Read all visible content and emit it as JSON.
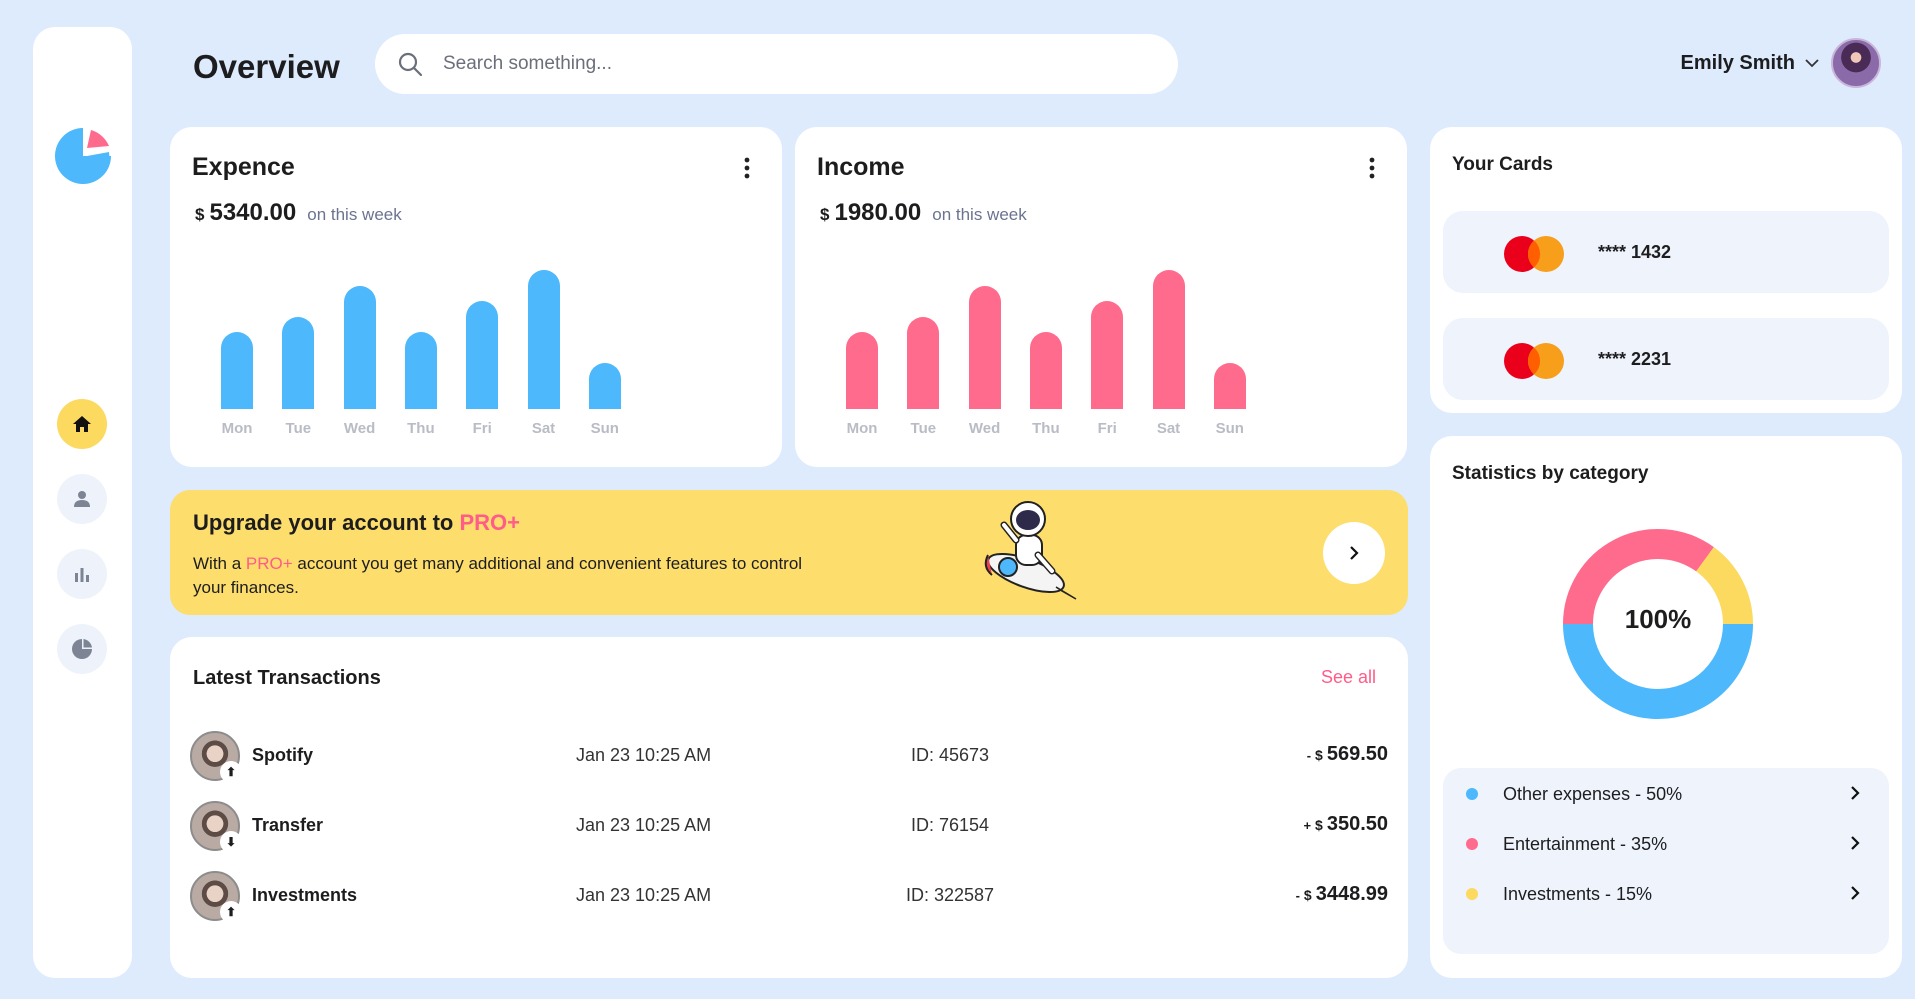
{
  "header": {
    "title": "Overview",
    "search_placeholder": "Search something...",
    "user_name": "Emily Smith"
  },
  "sidebar": {
    "items": [
      {
        "icon": "home-icon",
        "active": true
      },
      {
        "icon": "user-icon",
        "active": false
      },
      {
        "icon": "bar-chart-icon",
        "active": false
      },
      {
        "icon": "pie-chart-icon",
        "active": false
      }
    ]
  },
  "expense": {
    "title": "Expence",
    "currency": "$",
    "amount": "5340.00",
    "period": "on this week",
    "color": "#4db8fb"
  },
  "income": {
    "title": "Income",
    "currency": "$",
    "amount": "1980.00",
    "period": "on this week",
    "color": "#ff6b8d"
  },
  "chart_data": [
    {
      "type": "bar",
      "title": "Expence",
      "categories": [
        "Mon",
        "Tue",
        "Wed",
        "Thu",
        "Fri",
        "Sat",
        "Sun"
      ],
      "values": [
        55,
        66,
        88,
        55,
        77,
        99,
        33
      ],
      "ylim": [
        0,
        100
      ]
    },
    {
      "type": "bar",
      "title": "Income",
      "categories": [
        "Mon",
        "Tue",
        "Wed",
        "Thu",
        "Fri",
        "Sat",
        "Sun"
      ],
      "values": [
        55,
        66,
        88,
        55,
        77,
        99,
        33
      ],
      "ylim": [
        0,
        100
      ]
    },
    {
      "type": "pie",
      "title": "Statistics by category",
      "center_label": "100%",
      "categories": [
        "Other expenses",
        "Entertainment",
        "Investments"
      ],
      "values": [
        50,
        35,
        15
      ],
      "colors": [
        "#4db8fb",
        "#ff6b8d",
        "#fcd95f"
      ]
    }
  ],
  "promo": {
    "title_prefix": "Upgrade your account to ",
    "title_highlight": "PRO+",
    "text_prefix": "With a ",
    "text_highlight": "PRO+",
    "text_suffix": " account you get many additional and convenient features to control your finances."
  },
  "transactions": {
    "title": "Latest Transactions",
    "see_all": "See all",
    "rows": [
      {
        "name": "Spotify",
        "date": "Jan 23 10:25 AM",
        "id": "ID: 45673",
        "sign": "-",
        "currency": "$",
        "amount": "569.50",
        "direction": "up"
      },
      {
        "name": "Transfer",
        "date": "Jan 23 10:25 AM",
        "id": "ID: 76154",
        "sign": "+",
        "currency": "$",
        "amount": "350.50",
        "direction": "down"
      },
      {
        "name": "Investments",
        "date": "Jan 23 10:25 AM",
        "id": "ID: 322587",
        "sign": "-",
        "currency": "$",
        "amount": "3448.99",
        "direction": "up"
      }
    ]
  },
  "cards": {
    "title": "Your Cards",
    "items": [
      {
        "number": "**** 1432"
      },
      {
        "number": "**** 2231"
      }
    ]
  },
  "stats": {
    "title": "Statistics by category",
    "center_label": "100%",
    "legend": [
      {
        "label": "Other expenses - 50%",
        "color": "#4db8fb"
      },
      {
        "label": "Entertainment - 35%",
        "color": "#ff6b8d"
      },
      {
        "label": "Investments - 15%",
        "color": "#fcd95f"
      }
    ]
  }
}
